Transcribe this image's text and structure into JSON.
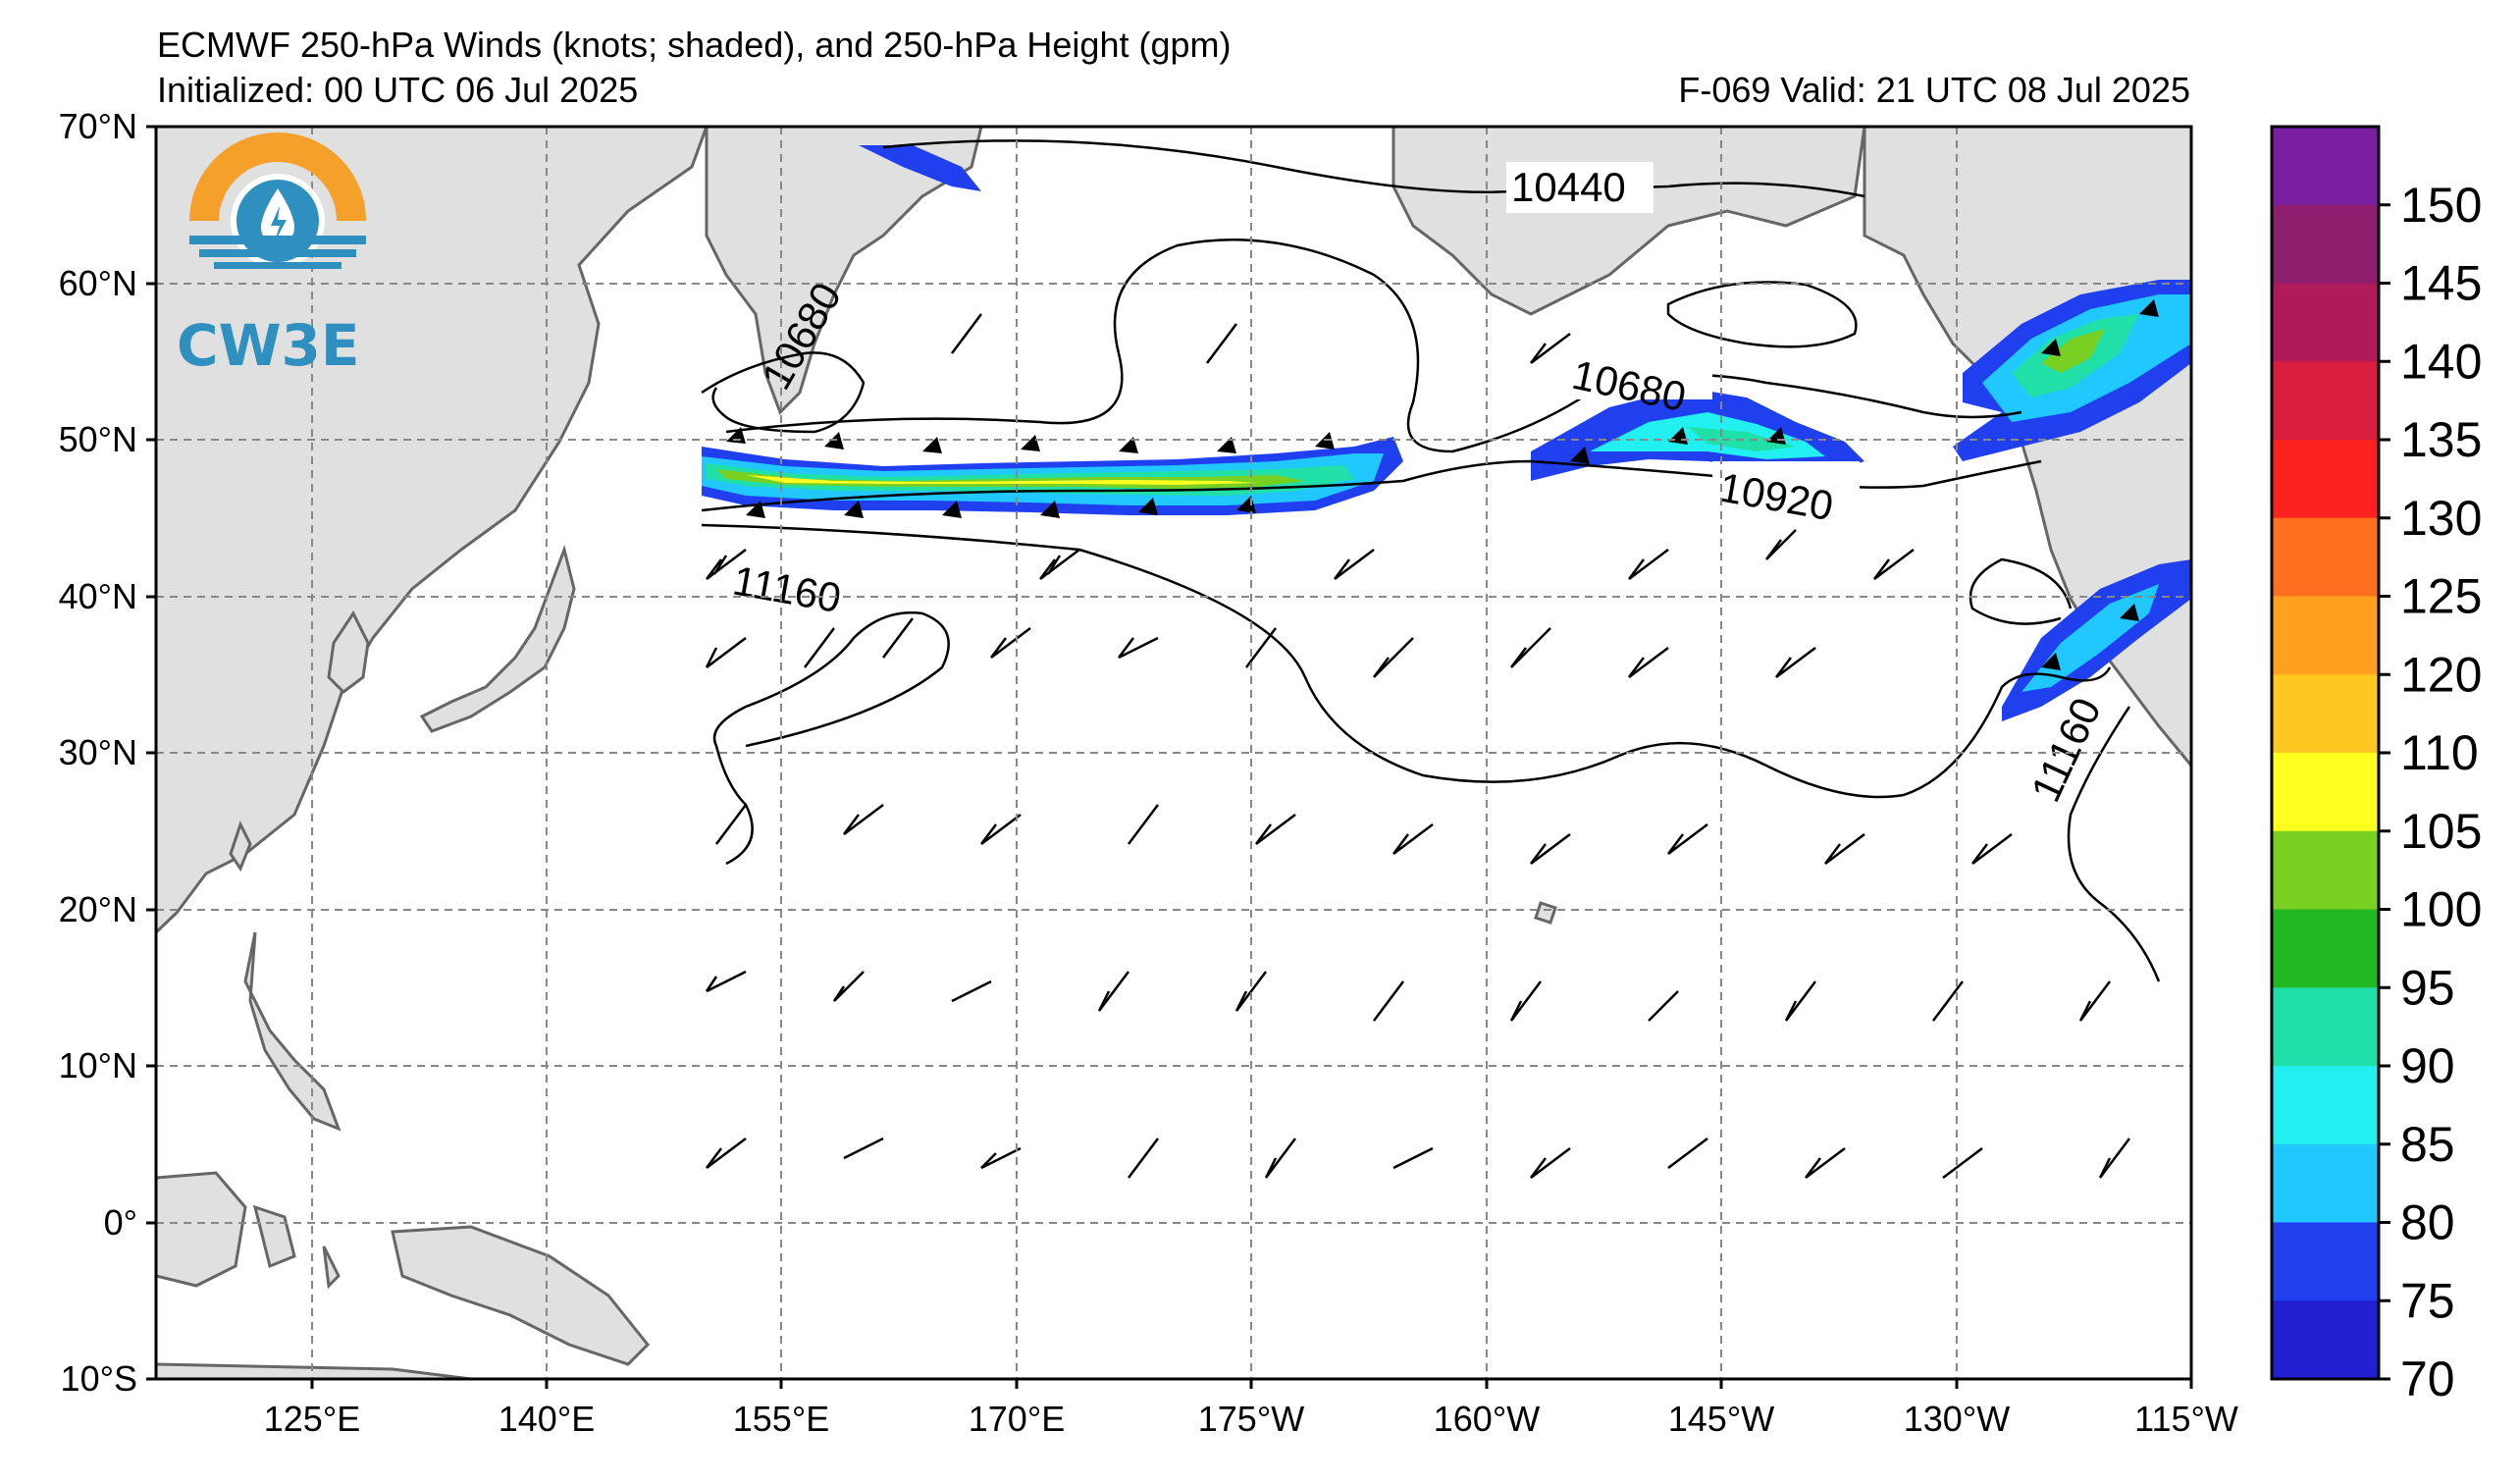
{
  "header": {
    "title": "ECMWF 250-hPa Winds (knots; shaded), and 250-hPa Height (gpm)",
    "initialized": "Initialized: 00 UTC 06 Jul 2025",
    "valid": "F-069  Valid: 21 UTC 08 Jul 2025"
  },
  "logo": {
    "text": "CW3E",
    "icon": "water-drop-lightning-icon"
  },
  "map": {
    "projection": "Plate Carree (central longitude 180)",
    "lon_range": [
      "115°E",
      "115°W"
    ],
    "lat_range": [
      "10°S",
      "70°N"
    ],
    "lat_ticks": [
      "70°N",
      "60°N",
      "50°N",
      "40°N",
      "30°N",
      "20°N",
      "10°N",
      "0°",
      "10°S"
    ],
    "lon_ticks": [
      "125°E",
      "140°E",
      "155°E",
      "170°E",
      "175°W",
      "160°W",
      "145°W",
      "130°W",
      "115°W"
    ],
    "grid": "dashed gray",
    "land_color": "#e0e0e0",
    "contour_labels": [
      "10440",
      "10680",
      "10680",
      "10920",
      "11160",
      "11160"
    ]
  },
  "colorbar": {
    "unit": "knots",
    "labels": [
      "150",
      "145",
      "140",
      "135",
      "130",
      "125",
      "120",
      "110",
      "105",
      "100",
      "95",
      "90",
      "85",
      "80",
      "75",
      "70"
    ],
    "colors_top_to_bottom": [
      "#7b1fa2",
      "#8e1e6e",
      "#b0195a",
      "#d81d3f",
      "#ff2020",
      "#ff7020",
      "#ffa020",
      "#ffc820",
      "#ffff20",
      "#78d022",
      "#22b822",
      "#20e0a8",
      "#22f0f0",
      "#20c8ff",
      "#2040f0",
      "#2020d0"
    ]
  }
}
